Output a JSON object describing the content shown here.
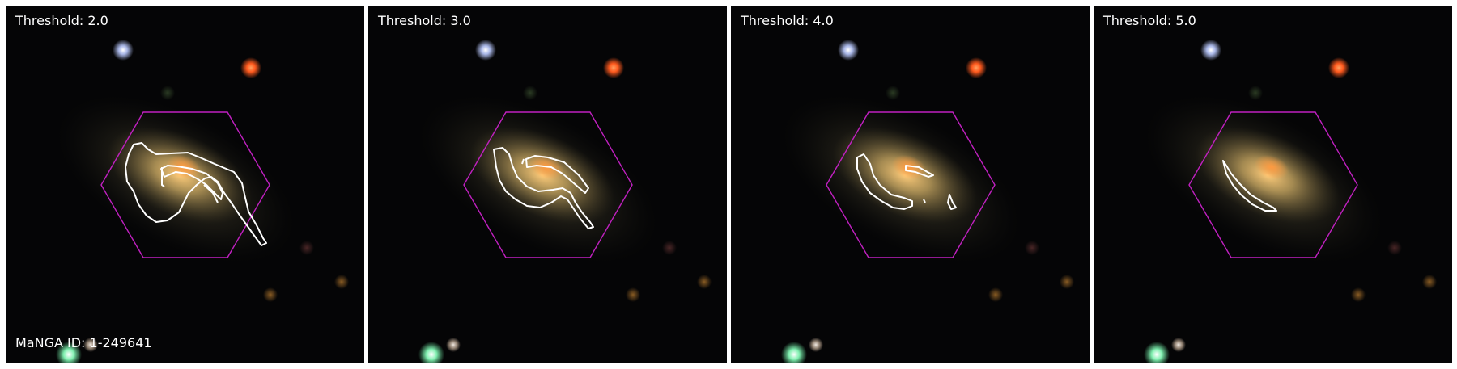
{
  "panels": [
    {
      "threshold_label": "Threshold: 2.0"
    },
    {
      "threshold_label": "Threshold: 3.0"
    },
    {
      "threshold_label": "Threshold: 4.0"
    },
    {
      "threshold_label": "Threshold: 5.0"
    }
  ],
  "galaxy_id_label": "MaNGA ID: 1-249641",
  "colors": {
    "background": "#050506",
    "hexagon": "#c020c0",
    "contour": "#ffffff",
    "galaxy_core": "#ffb060",
    "red_star": "#ff5a1e",
    "blue_star": "#d8e4ff",
    "green_star": "#b8ffd8"
  },
  "icons": [
    "ifu-hexagon-outline",
    "contour-lines",
    "galaxy",
    "stars"
  ]
}
